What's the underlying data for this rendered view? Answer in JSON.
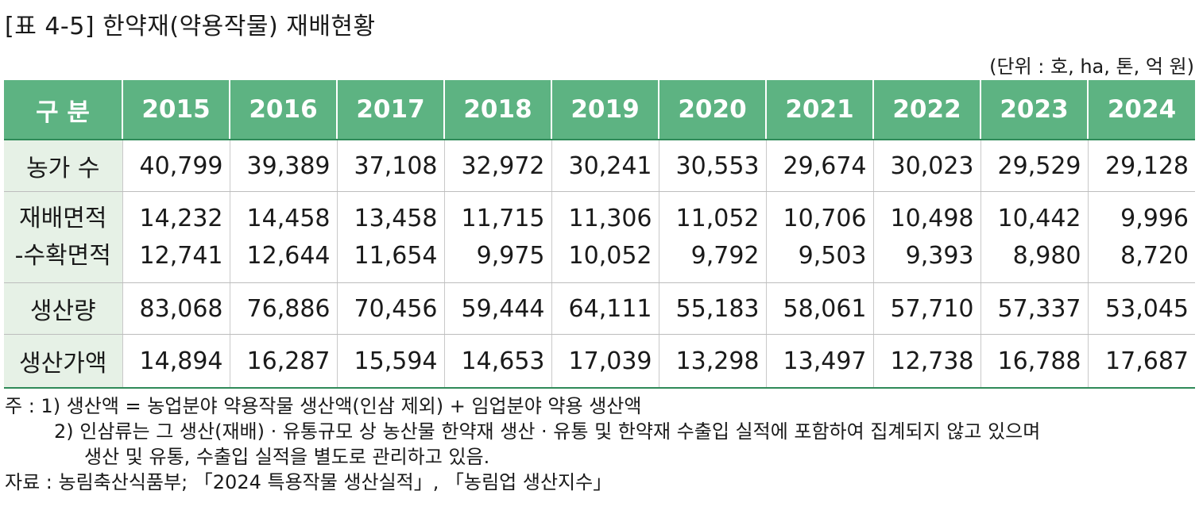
{
  "title": "[표 4-5] 한약재(약용작물) 재배현황",
  "unit": "(단위 : 호, ha, 톤, 억 원)",
  "table": {
    "header": {
      "label": "구 분",
      "years": [
        "2015",
        "2016",
        "2017",
        "2018",
        "2019",
        "2020",
        "2021",
        "2022",
        "2023",
        "2024"
      ]
    },
    "rows": [
      {
        "label": "농가 수",
        "values": [
          "40,799",
          "39,389",
          "37,108",
          "32,972",
          "30,241",
          "30,553",
          "29,674",
          "30,023",
          "29,529",
          "29,128"
        ]
      },
      {
        "label": "재배면적",
        "label2": "-수확면적",
        "values": [
          "14,232",
          "14,458",
          "13,458",
          "11,715",
          "11,306",
          "11,052",
          "10,706",
          "10,498",
          "10,442",
          "9,996"
        ],
        "values2": [
          "12,741",
          "12,644",
          "11,654",
          "9,975",
          "10,052",
          "9,792",
          "9,503",
          "9,393",
          "8,980",
          "8,720"
        ]
      },
      {
        "label": "생산량",
        "values": [
          "83,068",
          "76,886",
          "70,456",
          "59,444",
          "64,111",
          "55,183",
          "58,061",
          "57,710",
          "57,337",
          "53,045"
        ]
      },
      {
        "label": "생산가액",
        "values": [
          "14,894",
          "16,287",
          "15,594",
          "14,653",
          "17,039",
          "13,298",
          "13,497",
          "12,738",
          "16,788",
          "17,687"
        ]
      }
    ]
  },
  "notes": {
    "note1": "주 : 1) 생산액 = 농업분야 약용작물 생산액(인삼 제외) + 임업분야 약용 생산액",
    "note2_line1": "2) 인삼류는 그 생산(재배) · 유통규모 상 농산물 한약재 생산 · 유통 및 한약재 수출입 실적에 포함하여 집계되지 않고 있으며",
    "note2_line2": "생산 및 유통, 수출입 실적을 별도로 관리하고 있음.",
    "source": "자료 : 농림축산식품부; 「2024 특용작물 생산실적」, 「농림업 생산지수」"
  },
  "colors": {
    "header_bg": "#5db382",
    "row_header_bg": "#e6f1e6",
    "rule": "#2f8a58"
  }
}
